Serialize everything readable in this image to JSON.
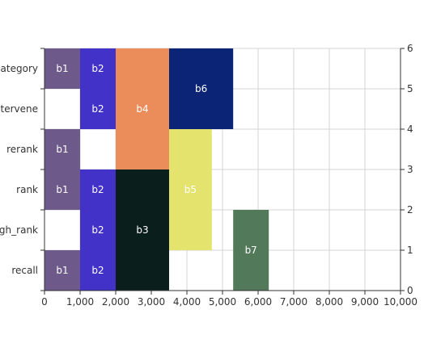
{
  "chart_data": {
    "type": "bar",
    "orientation": "horizontal-blocks",
    "x": {
      "min": 0,
      "max": 10000,
      "ticks": [
        0,
        1000,
        2000,
        3000,
        4000,
        5000,
        6000,
        7000,
        8000,
        9000,
        10000
      ],
      "tick_labels": [
        "0",
        "1,000",
        "2,000",
        "3,000",
        "4,000",
        "5,000",
        "6,000",
        "7,000",
        "8,000",
        "9,000",
        "10,000"
      ]
    },
    "y_right": {
      "min": 0,
      "max": 6,
      "ticks": [
        0,
        1,
        2,
        3,
        4,
        5,
        6
      ]
    },
    "categories": [
      "recall",
      "rough_rank",
      "rank",
      "rerank",
      "intervene",
      "category"
    ],
    "category_labels": [
      "recall",
      "ugh_rank",
      "rank",
      "rerank",
      "ntervene",
      "category"
    ],
    "grid": true,
    "blocks": [
      {
        "label": "b1",
        "x0": 0,
        "x1": 1000,
        "y0": 0,
        "y1": 1,
        "color": "#6e5a8a"
      },
      {
        "label": "b1",
        "x0": 0,
        "x1": 1000,
        "y0": 2,
        "y1": 3,
        "color": "#6e5a8a"
      },
      {
        "label": "b1",
        "x0": 0,
        "x1": 1000,
        "y0": 3,
        "y1": 4,
        "color": "#6e5a8a"
      },
      {
        "label": "b1",
        "x0": 0,
        "x1": 1000,
        "y0": 5,
        "y1": 6,
        "color": "#6e5a8a"
      },
      {
        "label": "b2",
        "x0": 1000,
        "x1": 2000,
        "y0": 0,
        "y1": 1,
        "color": "#4232c8"
      },
      {
        "label": "b2",
        "x0": 1000,
        "x1": 2000,
        "y0": 1,
        "y1": 2,
        "color": "#4232c8"
      },
      {
        "label": "b2",
        "x0": 1000,
        "x1": 2000,
        "y0": 2,
        "y1": 3,
        "color": "#4232c8"
      },
      {
        "label": "b2",
        "x0": 1000,
        "x1": 2000,
        "y0": 4,
        "y1": 5,
        "color": "#4232c8"
      },
      {
        "label": "b2",
        "x0": 1000,
        "x1": 2000,
        "y0": 5,
        "y1": 6,
        "color": "#4232c8"
      },
      {
        "label": "b3",
        "x0": 2000,
        "x1": 3500,
        "y0": 0,
        "y1": 3,
        "color": "#0a1f1c"
      },
      {
        "label": "b4",
        "x0": 2000,
        "x1": 3500,
        "y0": 3,
        "y1": 6,
        "color": "#ea8d5a"
      },
      {
        "label": "b5",
        "x0": 3500,
        "x1": 4700,
        "y0": 1,
        "y1": 4,
        "color": "#e3e36e"
      },
      {
        "label": "b6",
        "x0": 3500,
        "x1": 5300,
        "y0": 4,
        "y1": 6,
        "color": "#0c2475"
      },
      {
        "label": "b7",
        "x0": 5300,
        "x1": 6300,
        "y0": 0,
        "y1": 2,
        "color": "#527a5a"
      }
    ]
  }
}
